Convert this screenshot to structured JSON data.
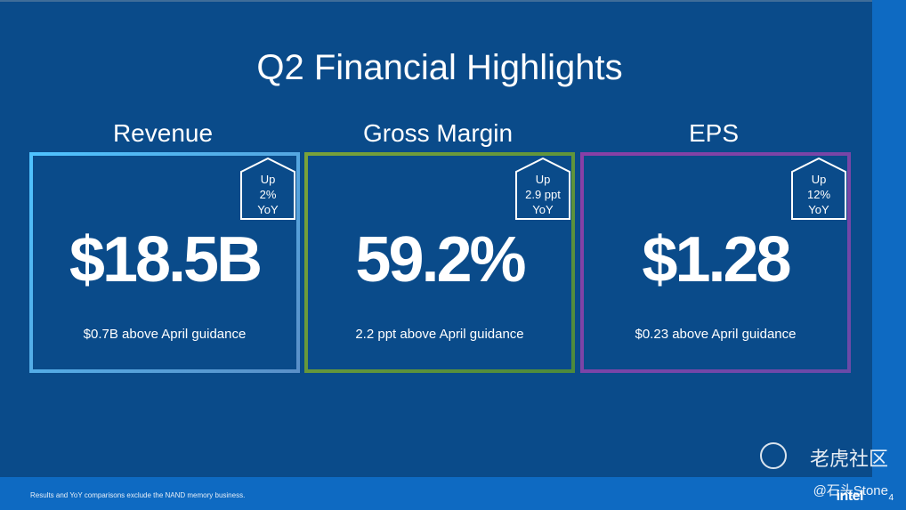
{
  "slide": {
    "title": "Q2 Financial Highlights",
    "footnote": "Results and YoY comparisons exclude the NAND memory business.",
    "page_number": "4",
    "brand": "intel"
  },
  "cards": [
    {
      "heading": "Revenue",
      "value": "$18.5B",
      "note": "$0.7B above April guidance",
      "badge": [
        "Up",
        "2%",
        "YoY"
      ]
    },
    {
      "heading": "Gross Margin",
      "value": "59.2%",
      "note": "2.2 ppt above April guidance",
      "badge": [
        "Up",
        "2.9 ppt",
        "YoY"
      ]
    },
    {
      "heading": "EPS",
      "value": "$1.28",
      "note": "$0.23 above April guidance",
      "badge": [
        "Up",
        "12%",
        "YoY"
      ]
    }
  ],
  "watermark": {
    "text": "老虎社区",
    "handle": "@石头Stone"
  },
  "colors": {
    "background": "#0a4b8a",
    "accent_strip": "#0e6ac2",
    "revenue_border": "#4fc3ff",
    "gross_margin_border": "#7aa23a",
    "eps_border": "#8a3fa6"
  }
}
